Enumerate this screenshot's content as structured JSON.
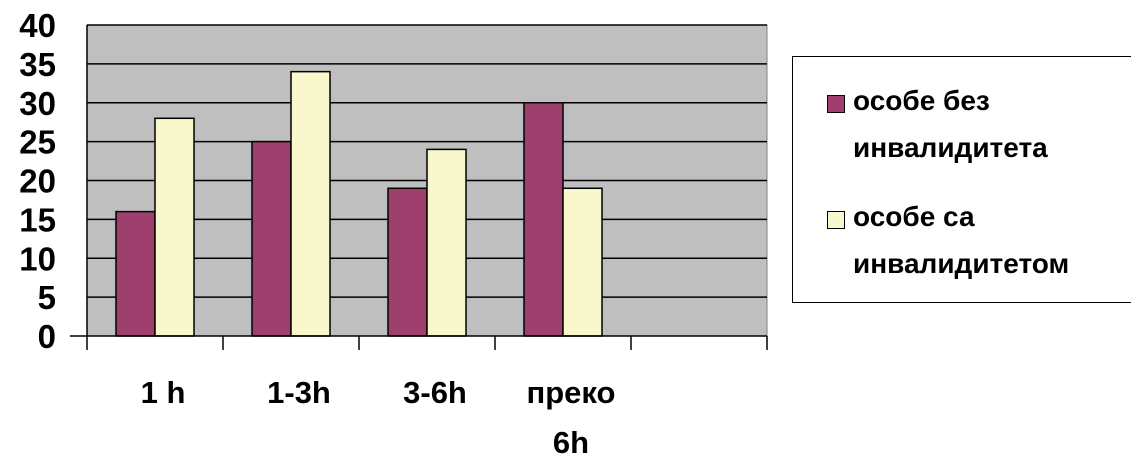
{
  "chart_data": {
    "type": "bar",
    "categories": [
      [
        "1 h"
      ],
      [
        "1-3h"
      ],
      [
        "3-6h"
      ],
      [
        "преко",
        "6h"
      ]
    ],
    "series": [
      {
        "name": "особе без инвалидитета",
        "legend_lines": [
          "особе без",
          "инвалидитета"
        ],
        "color": "#9e3f6e",
        "values": [
          16,
          25,
          19,
          30
        ]
      },
      {
        "name": "особе са инвалидитетом",
        "legend_lines": [
          "особе са",
          "инвалидитетом"
        ],
        "color": "#f9f7cc",
        "values": [
          28,
          34,
          24,
          19
        ]
      }
    ],
    "ylim": [
      0,
      40
    ],
    "yticks": [
      "0",
      "5",
      "10",
      "15",
      "20",
      "25",
      "30",
      "35",
      "40"
    ],
    "grid": true,
    "plot_background": "#bfbfbf",
    "legend_position": "right",
    "title": "",
    "xlabel": "",
    "ylabel": ""
  }
}
